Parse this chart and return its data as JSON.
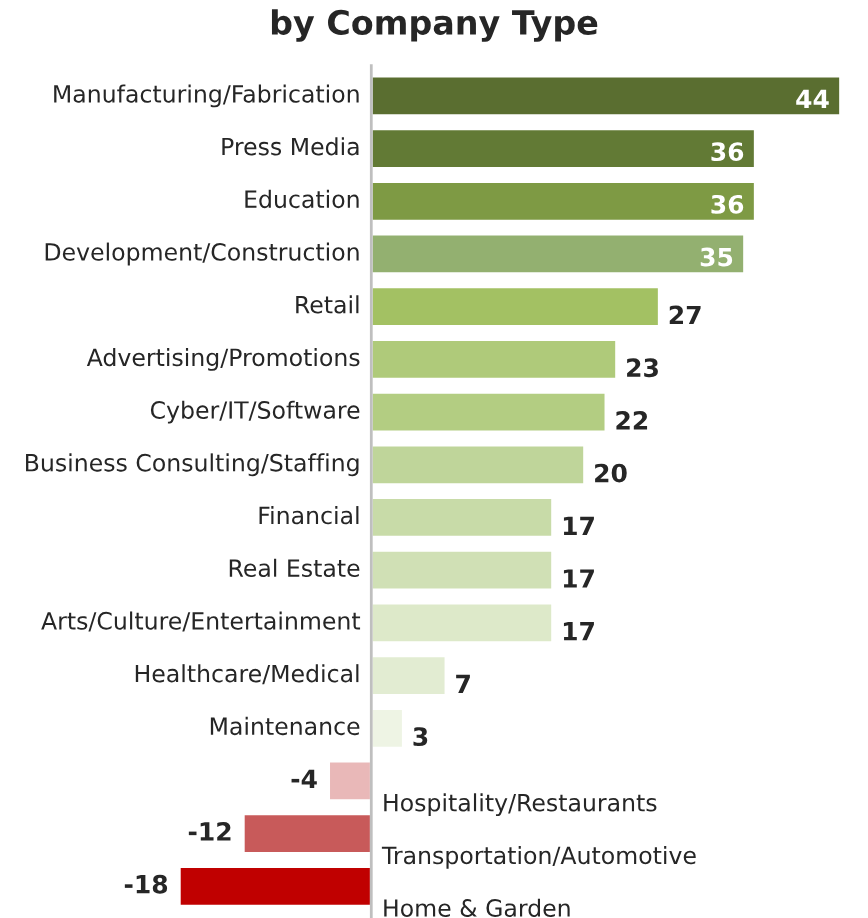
{
  "chart_data": {
    "type": "bar",
    "orientation": "horizontal",
    "title": "by Company Type",
    "data_labels": true,
    "categories": [
      "Manufacturing/Fabrication",
      "Press Media",
      "Education",
      "Development/Construction",
      "Retail",
      "Advertising/Promotions",
      "Cyber/IT/Software",
      "Business Consulting/Staffing",
      "Financial",
      "Real Estate",
      "Arts/Culture/Entertainment",
      "Healthcare/Medical",
      "Maintenance",
      "Hospitality/Restaurants",
      "Transportation/Automotive",
      "Home & Garden"
    ],
    "values": [
      44,
      36,
      36,
      35,
      27,
      23,
      22,
      20,
      17,
      17,
      17,
      7,
      3,
      -4,
      -12,
      -18
    ],
    "colors": [
      "#5a6e30",
      "#627a35",
      "#7e9a44",
      "#93b070",
      "#a3c163",
      "#afca7a",
      "#b3cd82",
      "#bfd59a",
      "#c8dba8",
      "#d0e0b5",
      "#dde9c9",
      "#e2ecd2",
      "#eef4e4",
      "#e9b8b8",
      "#c85a5a",
      "#c00000"
    ]
  }
}
